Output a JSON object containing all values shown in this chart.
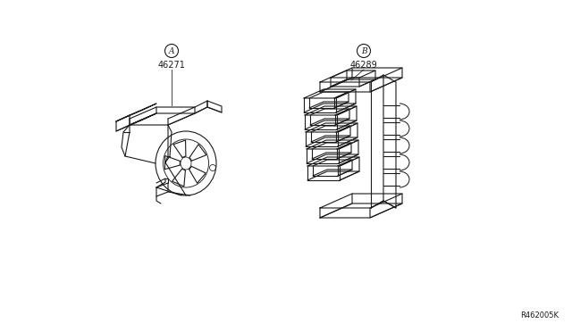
{
  "bg_color": "#ffffff",
  "line_color": "#1a1a1a",
  "label_A": "A",
  "label_B": "B",
  "part_A": "46271",
  "part_B": "46289",
  "ref_code": "R462005K",
  "figsize": [
    6.4,
    3.72
  ],
  "dpi": 100
}
